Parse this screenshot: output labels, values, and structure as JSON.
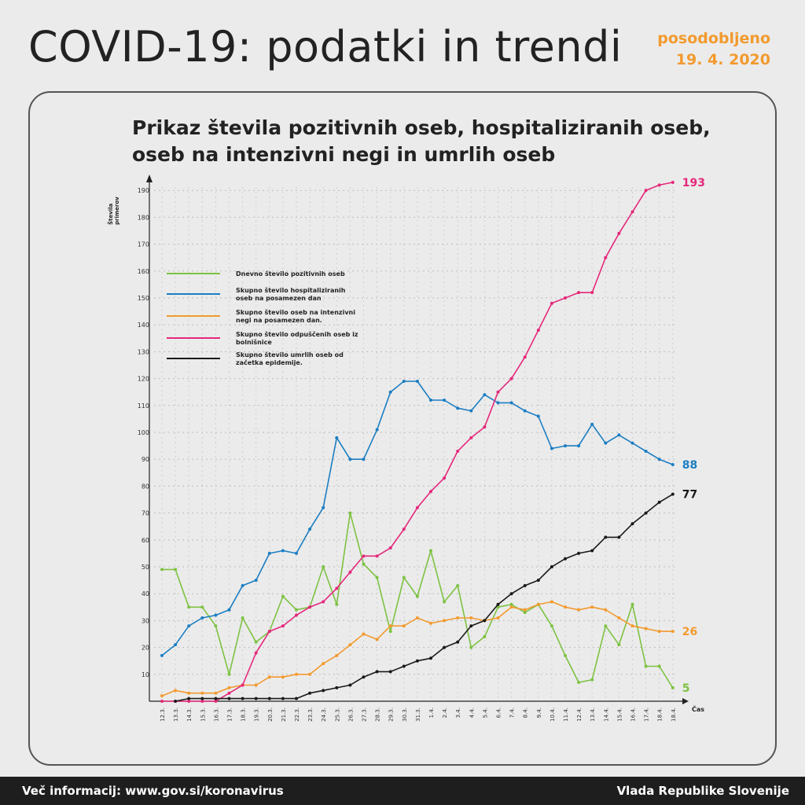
{
  "header": {
    "title": "COVID-19: podatki in trendi",
    "updated_label": "posodobljeno",
    "updated_date": "19. 4. 2020"
  },
  "footer": {
    "left": "Več informacij: www.gov.si/koronavirus",
    "right": "Vlada Republike Slovenije"
  },
  "chart_data": {
    "type": "line",
    "title": "Prikaz števila pozitivnih oseb, hospitaliziranih oseb, oseb na intenzivni negi in umrlih oseb",
    "ylabel": "Števila primerov",
    "xlabel": "Čas",
    "ylim": [
      0,
      190
    ],
    "yticks": [
      10,
      20,
      30,
      40,
      50,
      60,
      70,
      80,
      90,
      100,
      110,
      120,
      130,
      140,
      150,
      160,
      170,
      180,
      190
    ],
    "grid": true,
    "legend_position": "top-left",
    "categories": [
      "12.3.",
      "13.3.",
      "14.3.",
      "15.3.",
      "16.3.",
      "17.3.",
      "18.3.",
      "19.3.",
      "20.3.",
      "21.3.",
      "22.3.",
      "23.3.",
      "24.3.",
      "25.3.",
      "26.3.",
      "27.3.",
      "28.3.",
      "29.3.",
      "30.3.",
      "31.3.",
      "1.4.",
      "2.4.",
      "3.4.",
      "4.4.",
      "5.4.",
      "6.4.",
      "7.4.",
      "8.4.",
      "9.4.",
      "10.4.",
      "11.4.",
      "12.4.",
      "13.4.",
      "14.4.",
      "15.4.",
      "16.4.",
      "17.4.",
      "18.4.",
      "18.4."
    ],
    "series": [
      {
        "name": "Dnevno število pozitivnih oseb",
        "color": "#7dc242",
        "end_label": "5",
        "values": [
          49,
          49,
          35,
          35,
          28,
          10,
          31,
          22,
          26,
          39,
          34,
          35,
          50,
          36,
          70,
          51,
          46,
          26,
          46,
          39,
          56,
          37,
          43,
          20,
          24,
          35,
          36,
          33,
          36,
          28,
          17,
          7,
          8,
          28,
          21,
          36,
          13,
          13,
          5
        ]
      },
      {
        "name": "Skupno število hospitaliziranih oseb na posamezen dan",
        "color": "#1b7ec2",
        "end_label": "88",
        "values": [
          17,
          21,
          28,
          31,
          32,
          34,
          43,
          45,
          55,
          56,
          55,
          64,
          72,
          98,
          90,
          90,
          101,
          115,
          119,
          119,
          112,
          112,
          109,
          108,
          114,
          111,
          111,
          108,
          106,
          94,
          95,
          95,
          103,
          96,
          99,
          96,
          93,
          90,
          88
        ]
      },
      {
        "name": "Skupno število oseb na intenzivni negi na posamezen dan.",
        "color": "#f29a2e",
        "end_label": "26",
        "values": [
          2,
          4,
          3,
          3,
          3,
          5,
          6,
          6,
          9,
          9,
          10,
          10,
          14,
          17,
          21,
          25,
          23,
          28,
          28,
          31,
          29,
          30,
          31,
          31,
          30,
          31,
          35,
          34,
          36,
          37,
          35,
          34,
          35,
          34,
          31,
          28,
          27,
          26,
          26
        ]
      },
      {
        "name": "Skupno število odpuščenih oseb iz bolnišnice",
        "color": "#e5287b",
        "end_label": "193",
        "values": [
          0,
          0,
          0,
          0,
          0,
          3,
          6,
          18,
          26,
          28,
          32,
          35,
          37,
          42,
          48,
          54,
          54,
          57,
          64,
          72,
          78,
          83,
          93,
          98,
          102,
          115,
          120,
          128,
          138,
          148,
          150,
          152,
          152,
          165,
          174,
          182,
          190,
          192,
          193
        ]
      },
      {
        "name": "Skupno število umrlih oseb od začetka epidemije.",
        "color": "#1a1a1a",
        "end_label": "77",
        "values": [
          null,
          0,
          1,
          1,
          1,
          1,
          1,
          1,
          1,
          1,
          1,
          3,
          4,
          5,
          6,
          9,
          11,
          11,
          13,
          15,
          16,
          20,
          22,
          28,
          30,
          36,
          40,
          43,
          45,
          50,
          53,
          55,
          56,
          61,
          61,
          66,
          70,
          74,
          77
        ]
      }
    ]
  }
}
